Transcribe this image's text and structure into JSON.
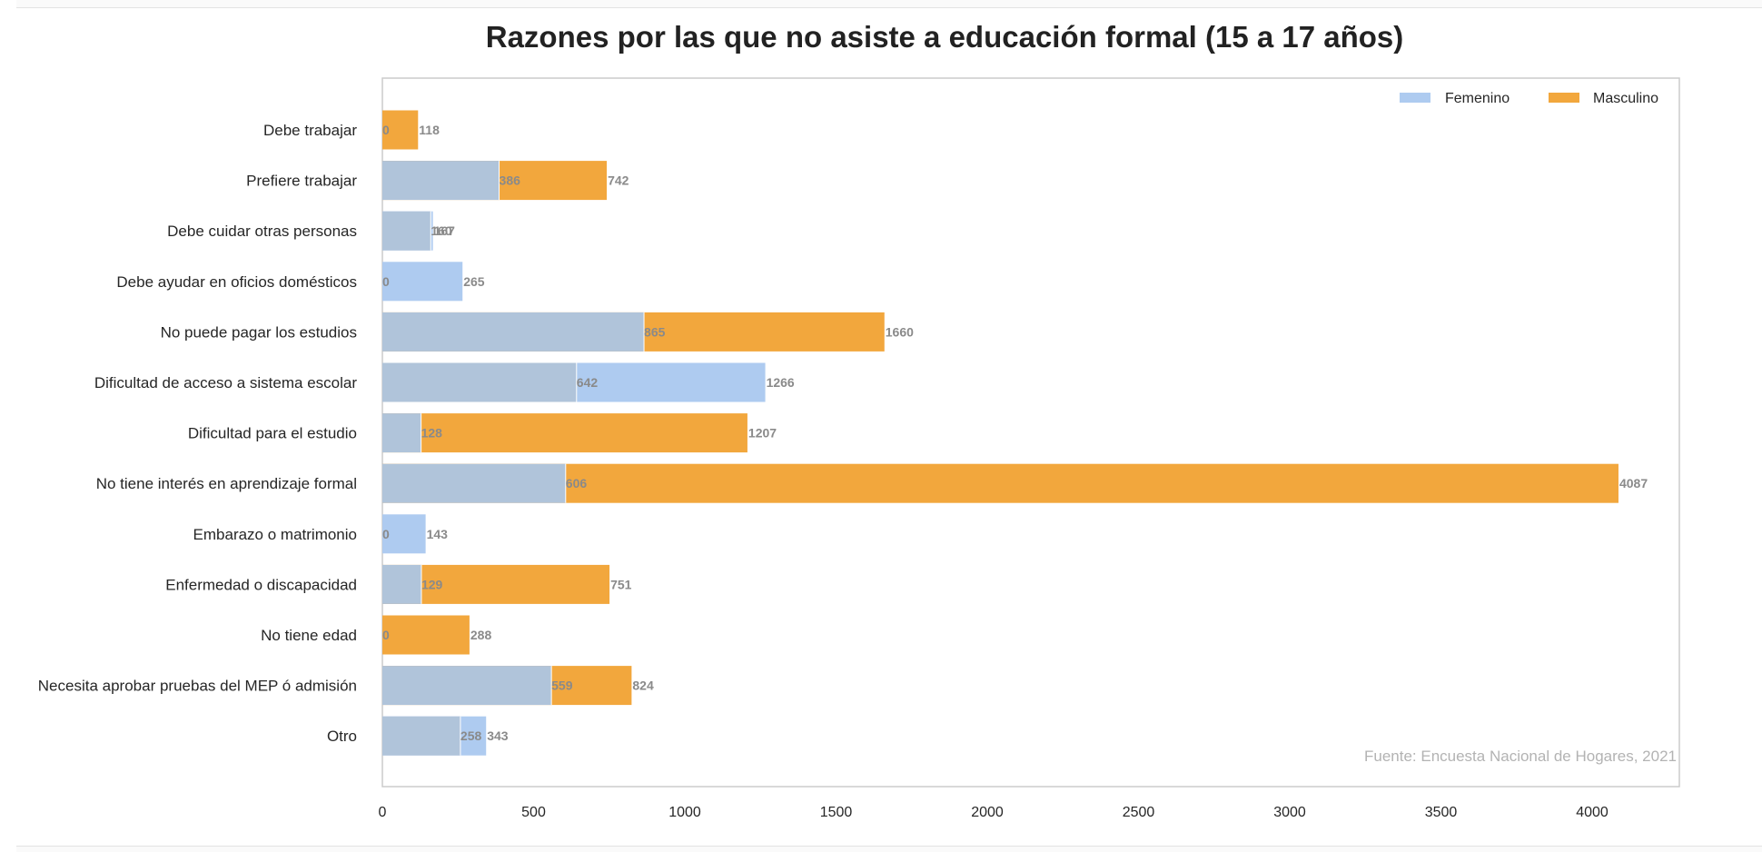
{
  "chart_data": {
    "type": "bar",
    "orientation": "horizontal",
    "stacking": "overlay",
    "title": "Razones por las que no asiste a educación formal (15 a 17 años)",
    "xlabel": "",
    "ylabel": "",
    "xlim": [
      0,
      4300
    ],
    "x_ticks": [
      "0",
      "500",
      "1000",
      "1500",
      "2000",
      "2500",
      "3000",
      "3500",
      "4000"
    ],
    "grid": false,
    "legend_position": "top-right",
    "annotation": "Fuente: Encuesta Nacional de Hogares, 2021",
    "categories": [
      "Debe trabajar",
      "Prefiere trabajar",
      "Debe cuidar otras personas",
      "Debe ayudar en oficios domésticos",
      "No puede pagar los estudios",
      "Dificultad de acceso a sistema escolar",
      "Dificultad para el estudio",
      "No tiene interés en aprendizaje formal",
      "Embarazo o matrimonio",
      "Enfermedad o discapacidad",
      "No tiene edad",
      "Necesita aprobar pruebas del MEP ó admisión",
      "Otro"
    ],
    "series": [
      {
        "name": "Femenino",
        "color": "#aecbf0",
        "values": [
          0,
          386,
          167,
          265,
          865,
          1266,
          128,
          606,
          143,
          129,
          0,
          559,
          343
        ]
      },
      {
        "name": "Masculino",
        "color": "#f2a73d",
        "values": [
          118,
          742,
          160,
          0,
          1660,
          642,
          1207,
          4087,
          0,
          751,
          288,
          824,
          258
        ]
      }
    ],
    "overlap_color": "#b0c4da",
    "min_value_labels": [
      "0",
      "386",
      "160",
      "0",
      "865",
      "642",
      "128",
      "606",
      "0",
      "129",
      "0",
      "559",
      "258"
    ],
    "max_value_labels": [
      "118",
      "742",
      "167",
      "265",
      "1660",
      "1266",
      "1207",
      "4087",
      "143",
      "751",
      "288",
      "824",
      "343"
    ]
  }
}
